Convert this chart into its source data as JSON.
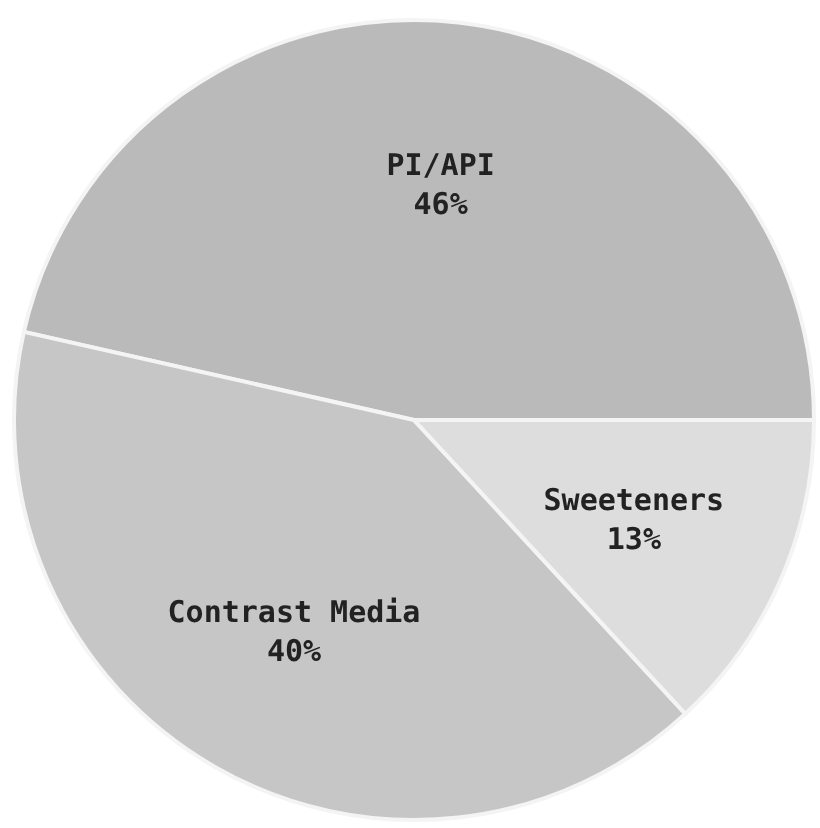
{
  "chart_data": {
    "type": "pie",
    "categories": [
      "PI/API",
      "Contrast Media",
      "Sweeteners"
    ],
    "values": [
      46,
      40,
      13
    ],
    "colors": [
      "#bababa",
      "#c6c6c6",
      "#dddddd"
    ],
    "value_labels": [
      "46%",
      "40%",
      "13%"
    ]
  }
}
